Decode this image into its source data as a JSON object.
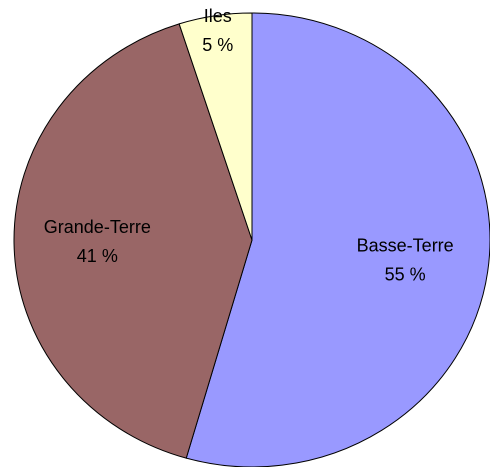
{
  "chart_data": {
    "type": "pie",
    "categories": [
      "Basse-Terre",
      "Grande-Terre",
      "Iles"
    ],
    "values": [
      55,
      41,
      5
    ],
    "value_labels": [
      "55 %",
      "41 %",
      "5 %"
    ],
    "colors": [
      "#9999ff",
      "#996666",
      "#ffffcc"
    ]
  }
}
